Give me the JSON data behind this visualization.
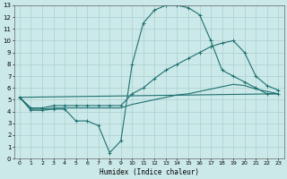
{
  "xlabel": "Humidex (Indice chaleur)",
  "background_color": "#cce9e9",
  "grid_color": "#aacfcf",
  "line_color": "#1e7070",
  "xlim": [
    -0.5,
    23.5
  ],
  "ylim": [
    0,
    13
  ],
  "xticks": [
    0,
    1,
    2,
    3,
    4,
    5,
    6,
    7,
    8,
    9,
    10,
    11,
    12,
    13,
    14,
    15,
    16,
    17,
    18,
    19,
    20,
    21,
    22,
    23
  ],
  "yticks": [
    0,
    1,
    2,
    3,
    4,
    5,
    6,
    7,
    8,
    9,
    10,
    11,
    12,
    13
  ],
  "line1_x": [
    0,
    1,
    2,
    3,
    4,
    5,
    6,
    7,
    8,
    9,
    10,
    11,
    12,
    13,
    14,
    15,
    16,
    17,
    18,
    19,
    20,
    21,
    22,
    23
  ],
  "line1_y": [
    5.2,
    4.1,
    4.1,
    4.2,
    4.2,
    3.2,
    3.2,
    2.8,
    0.5,
    1.5,
    8.0,
    11.5,
    12.6,
    13.0,
    13.0,
    12.8,
    12.2,
    10.0,
    7.5,
    7.0,
    6.5,
    6.0,
    5.5,
    5.5
  ],
  "line2_x": [
    0,
    1,
    2,
    3,
    4,
    5,
    6,
    7,
    8,
    9,
    10,
    11,
    12,
    13,
    14,
    15,
    16,
    17,
    18,
    19,
    20,
    21,
    22,
    23
  ],
  "line2_y": [
    5.2,
    4.3,
    4.3,
    4.5,
    4.5,
    4.5,
    4.5,
    4.5,
    4.5,
    4.5,
    5.5,
    6.0,
    6.8,
    7.5,
    8.0,
    8.5,
    9.0,
    9.5,
    9.8,
    10.0,
    9.0,
    7.0,
    6.2,
    5.8
  ],
  "line3_x": [
    0,
    1,
    2,
    3,
    4,
    5,
    6,
    7,
    8,
    9,
    10,
    11,
    12,
    13,
    14,
    15,
    16,
    17,
    18,
    19,
    20,
    21,
    22,
    23
  ],
  "line3_y": [
    5.2,
    4.2,
    4.2,
    4.3,
    4.3,
    4.3,
    4.3,
    4.3,
    4.3,
    4.3,
    4.6,
    4.8,
    5.0,
    5.2,
    5.4,
    5.5,
    5.7,
    5.9,
    6.1,
    6.3,
    6.2,
    5.9,
    5.7,
    5.5
  ],
  "line4_x": [
    0,
    23
  ],
  "line4_y": [
    5.2,
    5.5
  ]
}
